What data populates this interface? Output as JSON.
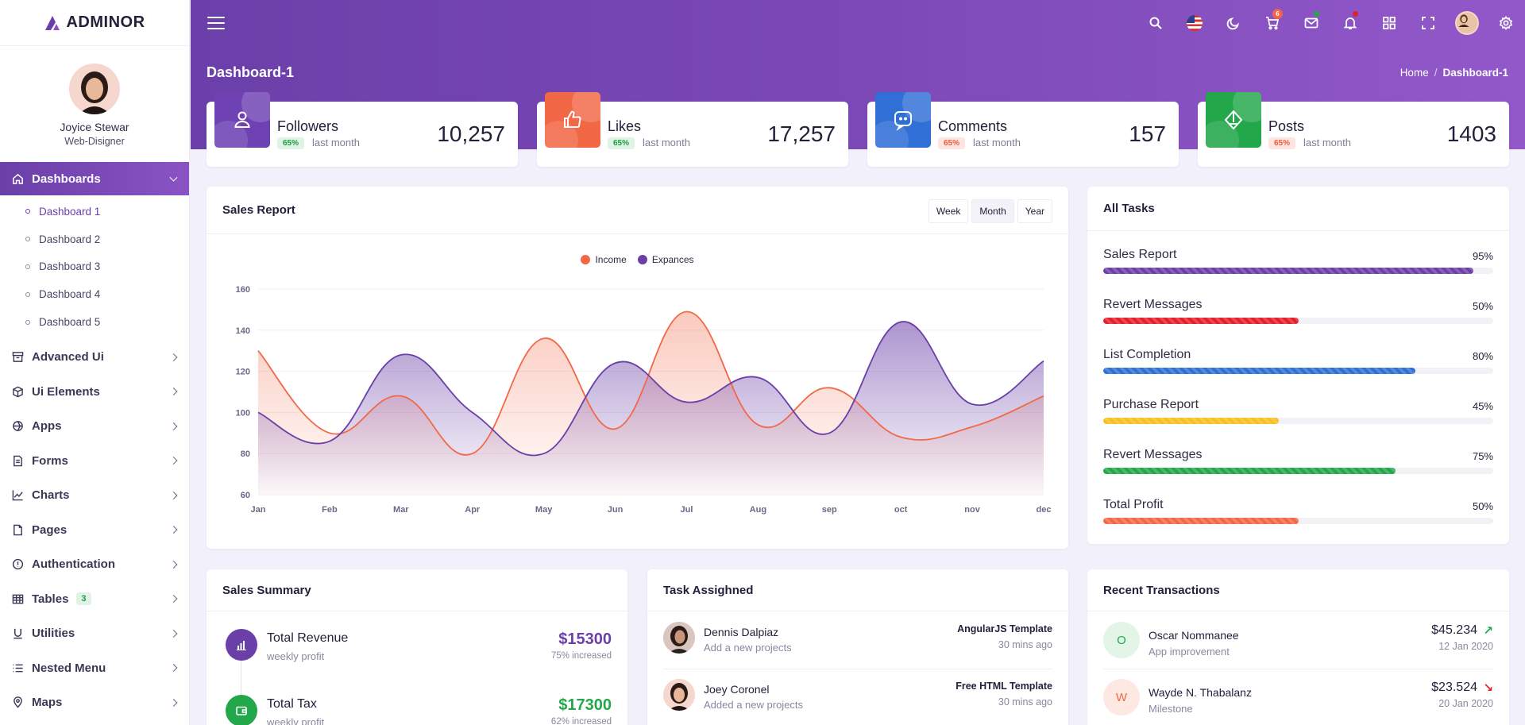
{
  "app": {
    "name": "ADMINOR"
  },
  "profile": {
    "name": "Joyice Stewar",
    "role": "Web-Disigner"
  },
  "sidebar": {
    "dashboards": {
      "label": "Dashboards",
      "items": [
        "Dashboard 1",
        "Dashboard 2",
        "Dashboard 3",
        "Dashboard 4",
        "Dashboard 5"
      ]
    },
    "items": [
      {
        "label": "Advanced Ui",
        "icon": "archive-icon"
      },
      {
        "label": "Ui Elements",
        "icon": "box-icon"
      },
      {
        "label": "Apps",
        "icon": "apps-icon"
      },
      {
        "label": "Forms",
        "icon": "file-text-icon"
      },
      {
        "label": "Charts",
        "icon": "chart-line-icon"
      },
      {
        "label": "Pages",
        "icon": "file-icon"
      },
      {
        "label": "Authentication",
        "icon": "info-icon"
      },
      {
        "label": "Tables",
        "icon": "table-icon",
        "badge": "3"
      },
      {
        "label": "Utilities",
        "icon": "magnet-icon"
      },
      {
        "label": "Nested Menu",
        "icon": "list-icon"
      },
      {
        "label": "Maps",
        "icon": "map-pin-icon"
      }
    ]
  },
  "topbar": {
    "cart_count": "6"
  },
  "page": {
    "title": "Dashboard-1",
    "breadcrumb_home": "Home",
    "breadcrumb_sep": "/",
    "breadcrumb_current": "Dashboard-1"
  },
  "stats": [
    {
      "label": "Followers",
      "pct": "65%",
      "sub": "last month",
      "value": "10,257",
      "color": "#6f42b4"
    },
    {
      "label": "Likes",
      "pct": "65%",
      "sub": "last month",
      "value": "17,257",
      "color": "#f26847"
    },
    {
      "label": "Comments",
      "pct": "65%",
      "sub": "last month",
      "value": "157",
      "color": "#2f6fd6"
    },
    {
      "label": "Posts",
      "pct": "65%",
      "sub": "last month",
      "value": "1403",
      "color": "#22a84a"
    }
  ],
  "sales_report": {
    "title": "Sales Report",
    "tabs": [
      "Week",
      "Month",
      "Year"
    ],
    "active_tab": "Month"
  },
  "chart_data": {
    "type": "area",
    "categories": [
      "Jan",
      "Feb",
      "Mar",
      "Apr",
      "May",
      "Jun",
      "Jul",
      "Aug",
      "sep",
      "oct",
      "nov",
      "dec"
    ],
    "series": [
      {
        "name": "Income",
        "color": "#f26847",
        "values": [
          130,
          90,
          108,
          80,
          136,
          92,
          149,
          94,
          112,
          88,
          93,
          108
        ]
      },
      {
        "name": "Expances",
        "color": "#6a3fa8",
        "values": [
          100,
          86,
          128,
          100,
          80,
          124,
          105,
          117,
          90,
          144,
          104,
          125
        ]
      }
    ],
    "yticks": [
      60,
      80,
      100,
      120,
      140,
      160
    ],
    "ylim": [
      60,
      160
    ],
    "legend": "top-center",
    "grid": true
  },
  "tasks": {
    "title": "All Tasks",
    "items": [
      {
        "name": "Sales Report",
        "pct": "95%",
        "value": 0.95,
        "color": "#6a3fa8"
      },
      {
        "name": "Revert Messages",
        "pct": "50%",
        "value": 0.5,
        "color": "#e51f2a"
      },
      {
        "name": "List Completion",
        "pct": "80%",
        "value": 0.8,
        "color": "#2f6fd6"
      },
      {
        "name": "Purchase Report",
        "pct": "45%",
        "value": 0.45,
        "color": "#f8c01e"
      },
      {
        "name": "Revert Messages",
        "pct": "75%",
        "value": 0.75,
        "color": "#22a84a"
      },
      {
        "name": "Total Profit",
        "pct": "50%",
        "value": 0.5,
        "color": "#f26847"
      }
    ]
  },
  "summary": {
    "title": "Sales Summary",
    "items": [
      {
        "title": "Total Revenue",
        "sub": "weekly profit",
        "value": "$15300",
        "inc": "75% increased",
        "color": "#6a3fa8"
      },
      {
        "title": "Total Tax",
        "sub": "weekly profit",
        "value": "$17300",
        "inc": "62% increased",
        "color": "#22a84a"
      }
    ]
  },
  "assigned": {
    "title": "Task Assighned",
    "items": [
      {
        "name": "Dennis Dalpiaz",
        "sub": "Add a new projects",
        "project": "AngularJS Template",
        "time": "30 mins ago"
      },
      {
        "name": "Joey Coronel",
        "sub": "Added a new projects",
        "project": "Free HTML Template",
        "time": "30 mins ago"
      }
    ]
  },
  "transactions": {
    "title": "Recent Transactions",
    "items": [
      {
        "initial": "O",
        "name": "Oscar Nommanee",
        "sub": "App improvement",
        "amount": "$45.234",
        "arrow": "↗",
        "date": "12 Jan 2020",
        "color": "#22a84a",
        "bg": "#e2f5e7"
      },
      {
        "initial": "W",
        "name": "Wayde N. Thabalanz",
        "sub": "Milestone",
        "amount": "$23.524",
        "arrow": "↘",
        "date": "20 Jan 2020",
        "color": "#f26847",
        "bg": "#fde8e2"
      }
    ]
  }
}
